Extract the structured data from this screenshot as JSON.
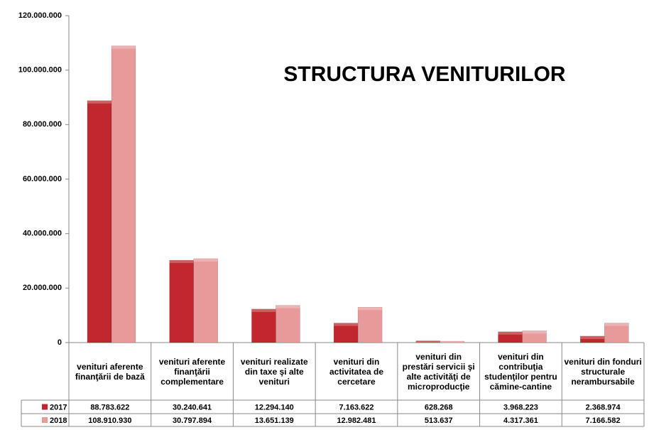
{
  "chart_data": {
    "type": "bar",
    "title": "STRUCTURA VENITURILOR",
    "categories": [
      "venituri aferente finanţării de bază",
      "venituri aferente finanţării complementare",
      "venituri realizate din taxe şi alte venituri",
      "venituri din activitatea de cercetare",
      "venituri din prestări servicii şi alte activităţi de microproducţie",
      "venituri din contribuţia studenţilor pentru cămine-cantine",
      "venituri din fonduri structurale nerambursabile"
    ],
    "series": [
      {
        "name": "2017",
        "color": "#c0282d",
        "values": [
          88783622,
          30240641,
          12294140,
          7163622,
          628268,
          3968223,
          2368974
        ],
        "value_labels": [
          "88.783.622",
          "30.240.641",
          "12.294.140",
          "7.163.622",
          "628.268",
          "3.968.223",
          "2.368.974"
        ]
      },
      {
        "name": "2018",
        "color": "#e8999a",
        "values": [
          108910930,
          30797894,
          13651139,
          12982481,
          513637,
          4317361,
          7166582
        ],
        "value_labels": [
          "108.910.930",
          "30.797.894",
          "13.651.139",
          "12.982.481",
          "513.637",
          "4.317.361",
          "7.166.582"
        ]
      }
    ],
    "ylim": [
      0,
      120000000
    ],
    "yticks": [
      0,
      {
        "value": 20000000,
        "label": "20.000.000"
      },
      {
        "value": 40000000,
        "label": "40.000.000"
      },
      {
        "value": 60000000,
        "label": "60.000.000"
      },
      {
        "value": 80000000,
        "label": "80.000.000"
      },
      {
        "value": 100000000,
        "label": "100.000.000"
      },
      {
        "value": 120000000,
        "label": "120.000.000"
      }
    ],
    "grid": false
  }
}
